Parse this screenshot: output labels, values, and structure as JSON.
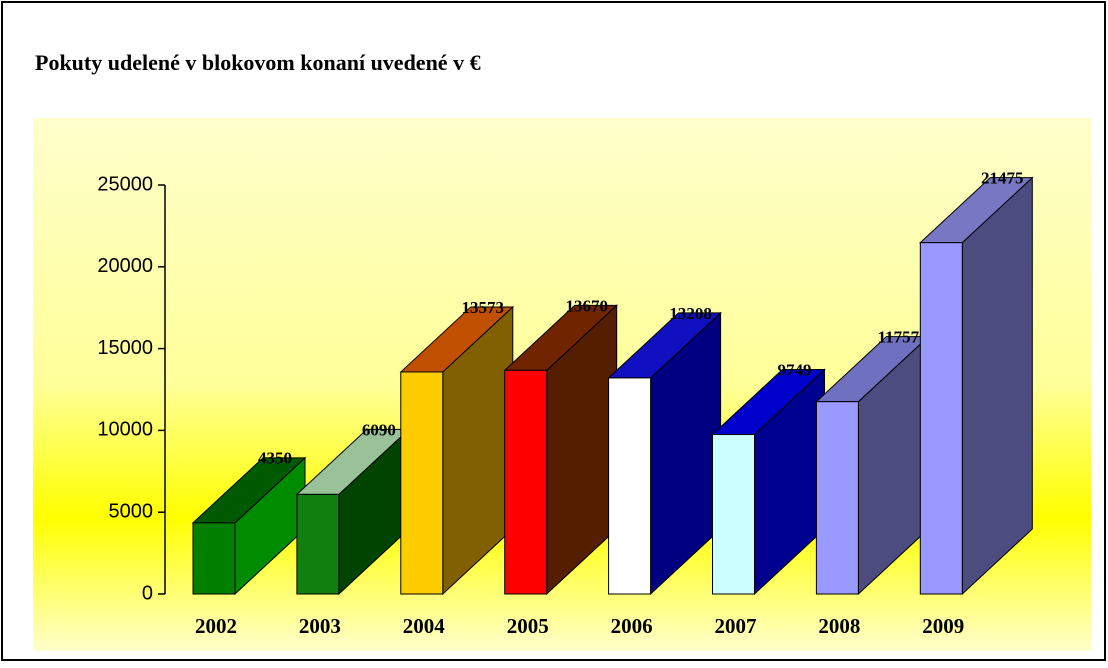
{
  "chart_data": {
    "type": "bar3d",
    "title": "Pokuty udelené v blokovom konaní uvedené v €",
    "categories": [
      "2002",
      "2003",
      "2004",
      "2005",
      "2006",
      "2007",
      "2008",
      "2009"
    ],
    "values": [
      4350,
      6090,
      13573,
      13670,
      13208,
      9749,
      11757,
      21475
    ],
    "bar_colors": [
      {
        "front": "#007f00",
        "top": "#005a00",
        "side": "#008c00"
      },
      {
        "front": "#107f10",
        "top": "#99c299",
        "side": "#004400"
      },
      {
        "front": "#ffcc00",
        "top": "#c05000",
        "side": "#806000"
      },
      {
        "front": "#ff0000",
        "top": "#702400",
        "side": "#561e00"
      },
      {
        "front": "#ffffff",
        "top": "#1010c0",
        "side": "#000080"
      },
      {
        "front": "#ccffff",
        "top": "#0000cc",
        "side": "#000090"
      },
      {
        "front": "#9999ff",
        "top": "#7070c0",
        "side": "#4c4c80"
      },
      {
        "front": "#9999ff",
        "top": "#7777c4",
        "side": "#4c4c80"
      }
    ],
    "ylim": [
      0,
      25000
    ],
    "yticks": [
      0,
      5000,
      10000,
      15000,
      20000,
      25000
    ],
    "grid": false
  }
}
